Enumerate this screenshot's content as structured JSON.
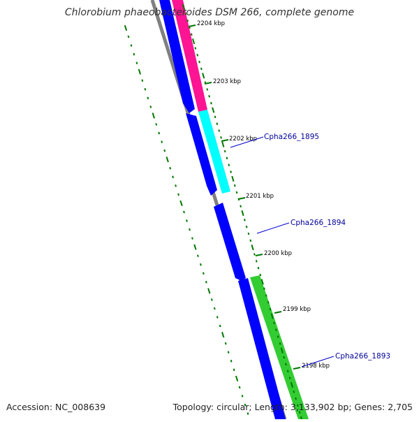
{
  "title": "Chlorobium phaeobacteroides DSM 266, complete genome",
  "accession_text": "Accession: NC_008639",
  "summary_text": "Topology: circular; Length: 3,133,902 bp; Genes: 2,705",
  "ruler_labels": [
    "2204 kbp",
    "2203 kbp",
    "2202 kbp",
    "2201 kbp",
    "2200 kbp",
    "2199 kbp",
    "2198 kbp"
  ],
  "gene_labels": [
    "Cpha266_1895",
    "Cpha266_1894",
    "Cpha266_1893"
  ],
  "colors": {
    "backbone": "#808080",
    "cds": "#0000ff",
    "feature_pink": "#ff1493",
    "feature_cyan": "#00ffff",
    "feature_green": "#33cc33",
    "tick": "#007700",
    "label_text": "#000099",
    "leader": "#0000cc"
  }
}
